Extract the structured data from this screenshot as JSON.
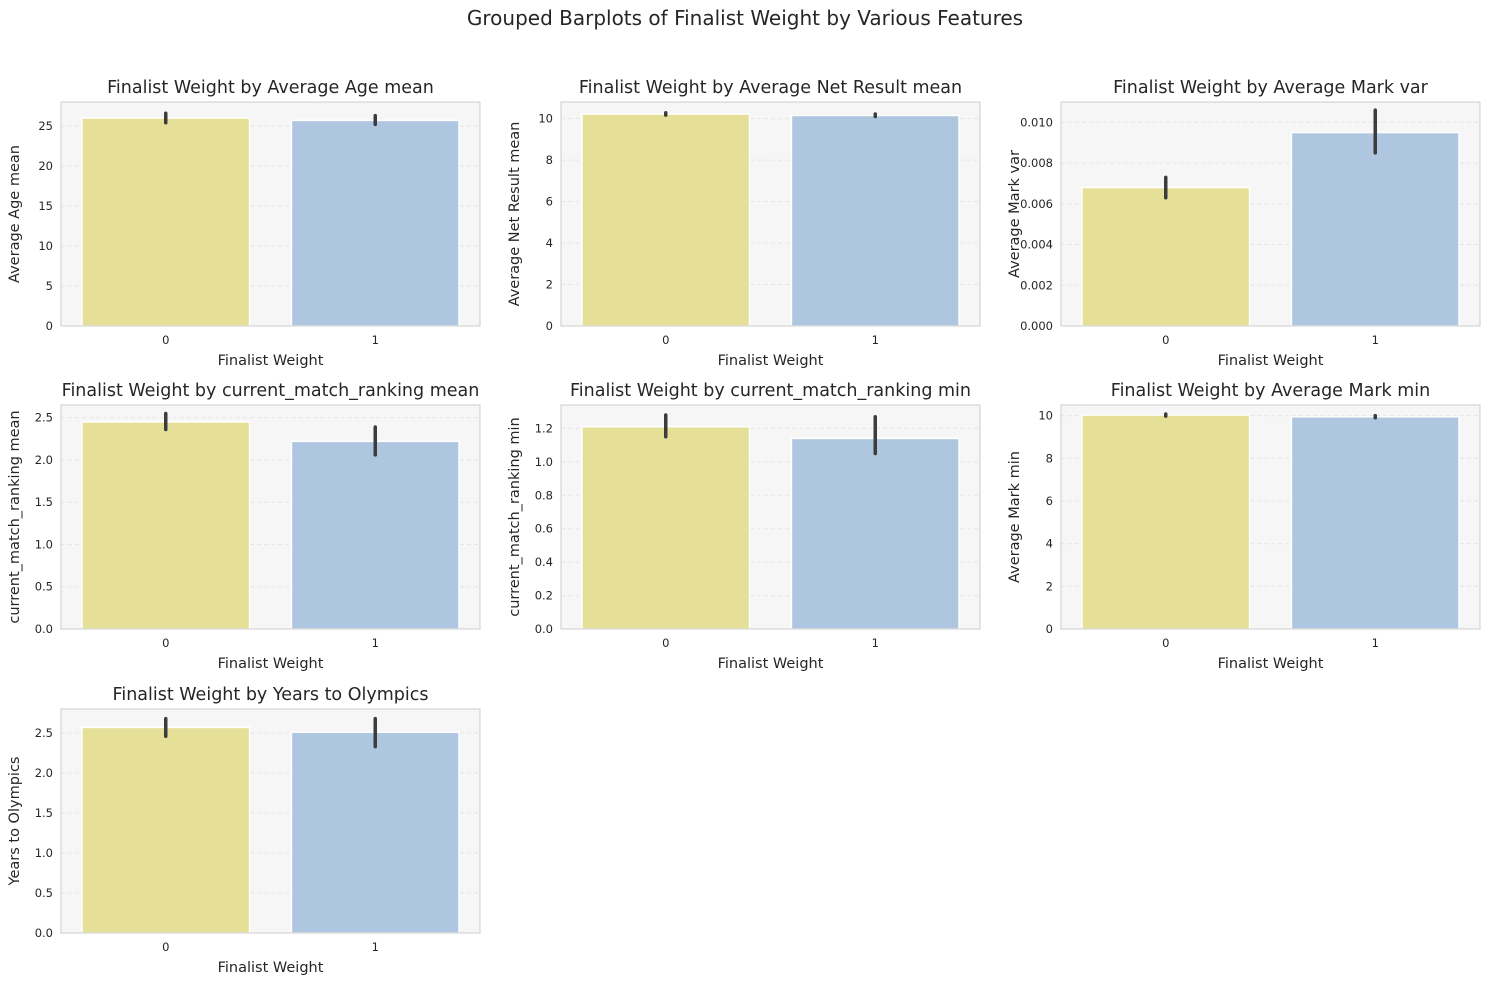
{
  "figure": {
    "suptitle": "Grouped Barplots of Finalist Weight by Various Features",
    "colors": {
      "bar0": "#e5df98",
      "bar1": "#aec6df",
      "plot_bg": "#f6f6f6",
      "errorbar": "#3c3c3c",
      "grid": "#e6e6e6",
      "spine": "#cccccc"
    }
  },
  "chart_data": [
    {
      "type": "bar",
      "title": "Finalist Weight by Average Age mean",
      "xlabel": "Finalist Weight",
      "ylabel": "Average Age mean",
      "categories": [
        "0",
        "1"
      ],
      "values": [
        26.0,
        25.7
      ],
      "error_low": [
        25.4,
        25.2
      ],
      "error_high": [
        26.6,
        26.3
      ],
      "ylim": [
        0,
        28
      ],
      "yticks": [
        "0",
        "5",
        "10",
        "15",
        "20",
        "25"
      ],
      "ytick_values": [
        0,
        5,
        10,
        15,
        20,
        25
      ],
      "grid": true
    },
    {
      "type": "bar",
      "title": "Finalist Weight by Average Net Result mean",
      "xlabel": "Finalist Weight",
      "ylabel": "Average Net Result mean",
      "categories": [
        "0",
        "1"
      ],
      "values": [
        10.22,
        10.15
      ],
      "error_low": [
        10.17,
        10.1
      ],
      "error_high": [
        10.28,
        10.22
      ],
      "ylim": [
        0,
        10.8
      ],
      "yticks": [
        "0",
        "2",
        "4",
        "6",
        "8",
        "10"
      ],
      "ytick_values": [
        0,
        2,
        4,
        6,
        8,
        10
      ],
      "grid": true
    },
    {
      "type": "bar",
      "title": "Finalist Weight by Average Mark var",
      "xlabel": "Finalist Weight",
      "ylabel": "Average Mark var",
      "categories": [
        "0",
        "1"
      ],
      "values": [
        0.0068,
        0.0095
      ],
      "error_low": [
        0.0063,
        0.0085
      ],
      "error_high": [
        0.0073,
        0.0106
      ],
      "ylim": [
        0,
        0.011
      ],
      "yticks": [
        "0.000",
        "0.002",
        "0.004",
        "0.006",
        "0.008",
        "0.010"
      ],
      "ytick_values": [
        0,
        0.002,
        0.004,
        0.006,
        0.008,
        0.01
      ],
      "grid": true
    },
    {
      "type": "bar",
      "title": "Finalist Weight by current_match_ranking mean",
      "xlabel": "Finalist Weight",
      "ylabel": "current_match_ranking mean",
      "categories": [
        "0",
        "1"
      ],
      "values": [
        2.45,
        2.22
      ],
      "error_low": [
        2.36,
        2.06
      ],
      "error_high": [
        2.55,
        2.39
      ],
      "ylim": [
        0,
        2.65
      ],
      "yticks": [
        "0.0",
        "0.5",
        "1.0",
        "1.5",
        "2.0",
        "2.5"
      ],
      "ytick_values": [
        0,
        0.5,
        1,
        1.5,
        2,
        2.5
      ],
      "grid": true
    },
    {
      "type": "bar",
      "title": "Finalist Weight by current_match_ranking min",
      "xlabel": "Finalist Weight",
      "ylabel": "current_match_ranking min",
      "categories": [
        "0",
        "1"
      ],
      "values": [
        1.21,
        1.14
      ],
      "error_low": [
        1.15,
        1.05
      ],
      "error_high": [
        1.28,
        1.27
      ],
      "ylim": [
        0,
        1.34
      ],
      "yticks": [
        "0.0",
        "0.2",
        "0.4",
        "0.6",
        "0.8",
        "1.0",
        "1.2"
      ],
      "ytick_values": [
        0,
        0.2,
        0.4,
        0.6,
        0.8,
        1.0,
        1.2
      ],
      "grid": true
    },
    {
      "type": "bar",
      "title": "Finalist Weight by Average Mark min",
      "xlabel": "Finalist Weight",
      "ylabel": "Average Mark min",
      "categories": [
        "0",
        "1"
      ],
      "values": [
        10.03,
        9.95
      ],
      "error_low": [
        9.98,
        9.9
      ],
      "error_high": [
        10.08,
        10.0
      ],
      "ylim": [
        0,
        10.5
      ],
      "yticks": [
        "0",
        "2",
        "4",
        "6",
        "8",
        "10"
      ],
      "ytick_values": [
        0,
        2,
        4,
        6,
        8,
        10
      ],
      "grid": true
    },
    {
      "type": "bar",
      "title": "Finalist Weight by Years to Olympics",
      "xlabel": "Finalist Weight",
      "ylabel": "Years to Olympics",
      "categories": [
        "0",
        "1"
      ],
      "values": [
        2.57,
        2.51
      ],
      "error_low": [
        2.46,
        2.33
      ],
      "error_high": [
        2.68,
        2.68
      ],
      "ylim": [
        0,
        2.8
      ],
      "yticks": [
        "0.0",
        "0.5",
        "1.0",
        "1.5",
        "2.0",
        "2.5"
      ],
      "ytick_values": [
        0,
        0.5,
        1,
        1.5,
        2,
        2.5
      ],
      "grid": true
    }
  ]
}
